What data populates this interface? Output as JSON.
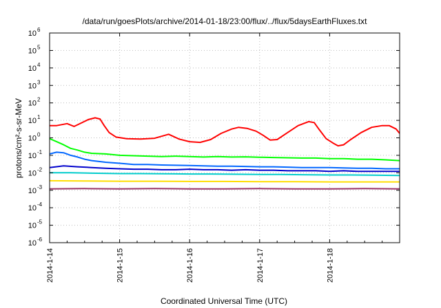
{
  "chart_data": {
    "type": "line",
    "title": "/data/run/goesPlots/archive/2014-01-18/23:00/flux/../flux/5daysEarthFluxes.txt",
    "xlabel": "Coordinated Universal Time (UTC)",
    "ylabel": "protons/cm²-s-sr-MeV",
    "x_range_days": [
      0,
      5
    ],
    "x_ticks": [
      {
        "day": 0,
        "label": "2014-1-14"
      },
      {
        "day": 1,
        "label": "2014-1-15"
      },
      {
        "day": 2,
        "label": "2014-1-16"
      },
      {
        "day": 3,
        "label": "2014-1-17"
      },
      {
        "day": 4,
        "label": "2014-1-18"
      }
    ],
    "y_scale": "log",
    "ylim": [
      1e-06,
      1000000.0
    ],
    "y_ticks": [
      {
        "exp": 6,
        "base": "10",
        "sup": "6"
      },
      {
        "exp": 5,
        "base": "10",
        "sup": "5"
      },
      {
        "exp": 4,
        "base": "10",
        "sup": "4"
      },
      {
        "exp": 3,
        "base": "10",
        "sup": "3"
      },
      {
        "exp": 2,
        "base": "10",
        "sup": "2"
      },
      {
        "exp": 1,
        "base": "10",
        "sup": "1"
      },
      {
        "exp": 0,
        "base": "10",
        "sup": "0"
      },
      {
        "exp": -1,
        "base": "10",
        "sup": "-1"
      },
      {
        "exp": -2,
        "base": "10",
        "sup": "-2"
      },
      {
        "exp": -3,
        "base": "10",
        "sup": "-3"
      },
      {
        "exp": -4,
        "base": "10",
        "sup": "-4"
      },
      {
        "exp": -5,
        "base": "10",
        "sup": "-5"
      },
      {
        "exp": -6,
        "base": "10",
        "sup": "-6"
      }
    ],
    "grid": true,
    "legend": "none",
    "series": [
      {
        "color": "#ff0000",
        "points": [
          [
            0,
            5.0
          ],
          [
            0.1,
            5.0
          ],
          [
            0.25,
            6.5
          ],
          [
            0.35,
            4.5
          ],
          [
            0.45,
            7.0
          ],
          [
            0.55,
            11.0
          ],
          [
            0.65,
            14.0
          ],
          [
            0.72,
            12.0
          ],
          [
            0.78,
            5.0
          ],
          [
            0.85,
            2.0
          ],
          [
            0.95,
            1.1
          ],
          [
            1.1,
            0.9
          ],
          [
            1.3,
            0.85
          ],
          [
            1.5,
            0.95
          ],
          [
            1.7,
            1.6
          ],
          [
            1.85,
            0.85
          ],
          [
            2.0,
            0.6
          ],
          [
            2.15,
            0.55
          ],
          [
            2.3,
            0.8
          ],
          [
            2.45,
            1.8
          ],
          [
            2.6,
            3.2
          ],
          [
            2.7,
            4.0
          ],
          [
            2.82,
            3.5
          ],
          [
            2.95,
            2.4
          ],
          [
            3.05,
            1.4
          ],
          [
            3.15,
            0.75
          ],
          [
            3.25,
            0.8
          ],
          [
            3.4,
            2.0
          ],
          [
            3.55,
            5.0
          ],
          [
            3.7,
            8.5
          ],
          [
            3.78,
            7.5
          ],
          [
            3.85,
            3.0
          ],
          [
            3.95,
            0.9
          ],
          [
            4.05,
            0.5
          ],
          [
            4.12,
            0.35
          ],
          [
            4.2,
            0.4
          ],
          [
            4.3,
            0.8
          ],
          [
            4.45,
            2.0
          ],
          [
            4.6,
            4.0
          ],
          [
            4.75,
            5.0
          ],
          [
            4.85,
            5.0
          ],
          [
            4.95,
            3.2
          ],
          [
            5.0,
            1.8
          ]
        ]
      },
      {
        "color": "#00ff00",
        "points": [
          [
            0,
            0.9
          ],
          [
            0.1,
            0.6
          ],
          [
            0.2,
            0.4
          ],
          [
            0.3,
            0.25
          ],
          [
            0.4,
            0.2
          ],
          [
            0.5,
            0.15
          ],
          [
            0.6,
            0.13
          ],
          [
            0.8,
            0.12
          ],
          [
            1.0,
            0.1
          ],
          [
            1.2,
            0.095
          ],
          [
            1.4,
            0.09
          ],
          [
            1.6,
            0.085
          ],
          [
            1.8,
            0.09
          ],
          [
            2.0,
            0.085
          ],
          [
            2.2,
            0.08
          ],
          [
            2.4,
            0.085
          ],
          [
            2.6,
            0.08
          ],
          [
            2.8,
            0.082
          ],
          [
            3.0,
            0.078
          ],
          [
            3.2,
            0.075
          ],
          [
            3.4,
            0.072
          ],
          [
            3.6,
            0.07
          ],
          [
            3.8,
            0.07
          ],
          [
            4.0,
            0.065
          ],
          [
            4.2,
            0.065
          ],
          [
            4.4,
            0.06
          ],
          [
            4.6,
            0.06
          ],
          [
            4.8,
            0.055
          ],
          [
            5.0,
            0.05
          ]
        ]
      },
      {
        "color": "#0066ff",
        "points": [
          [
            0,
            0.12
          ],
          [
            0.1,
            0.15
          ],
          [
            0.2,
            0.14
          ],
          [
            0.3,
            0.1
          ],
          [
            0.4,
            0.08
          ],
          [
            0.5,
            0.06
          ],
          [
            0.6,
            0.05
          ],
          [
            0.8,
            0.04
          ],
          [
            1.0,
            0.035
          ],
          [
            1.2,
            0.03
          ],
          [
            1.4,
            0.03
          ],
          [
            1.6,
            0.028
          ],
          [
            1.8,
            0.027
          ],
          [
            2.0,
            0.026
          ],
          [
            2.2,
            0.025
          ],
          [
            2.4,
            0.024
          ],
          [
            2.6,
            0.024
          ],
          [
            2.8,
            0.023
          ],
          [
            3.0,
            0.022
          ],
          [
            3.2,
            0.022
          ],
          [
            3.4,
            0.021
          ],
          [
            3.6,
            0.02
          ],
          [
            3.8,
            0.02
          ],
          [
            4.0,
            0.02
          ],
          [
            4.2,
            0.019
          ],
          [
            4.4,
            0.018
          ],
          [
            4.6,
            0.018
          ],
          [
            4.8,
            0.017
          ],
          [
            5.0,
            0.017
          ]
        ]
      },
      {
        "color": "#0000cc",
        "points": [
          [
            0,
            0.02
          ],
          [
            0.2,
            0.025
          ],
          [
            0.4,
            0.022
          ],
          [
            0.6,
            0.02
          ],
          [
            0.8,
            0.018
          ],
          [
            1.0,
            0.017
          ],
          [
            1.2,
            0.016
          ],
          [
            1.4,
            0.016
          ],
          [
            1.6,
            0.015
          ],
          [
            1.8,
            0.015
          ],
          [
            2.0,
            0.016
          ],
          [
            2.2,
            0.015
          ],
          [
            2.4,
            0.015
          ],
          [
            2.6,
            0.014
          ],
          [
            2.8,
            0.015
          ],
          [
            3.0,
            0.014
          ],
          [
            3.2,
            0.014
          ],
          [
            3.4,
            0.013
          ],
          [
            3.6,
            0.013
          ],
          [
            3.8,
            0.013
          ],
          [
            4.0,
            0.012
          ],
          [
            4.2,
            0.013
          ],
          [
            4.4,
            0.012
          ],
          [
            4.6,
            0.012
          ],
          [
            4.8,
            0.012
          ],
          [
            5.0,
            0.012
          ]
        ]
      },
      {
        "color": "#00cccc",
        "points": [
          [
            0,
            0.01
          ],
          [
            0.3,
            0.01
          ],
          [
            0.6,
            0.0095
          ],
          [
            1.0,
            0.009
          ],
          [
            1.3,
            0.009
          ],
          [
            1.6,
            0.0088
          ],
          [
            2.0,
            0.0085
          ],
          [
            2.3,
            0.0085
          ],
          [
            2.6,
            0.0083
          ],
          [
            3.0,
            0.008
          ],
          [
            3.3,
            0.008
          ],
          [
            3.6,
            0.0078
          ],
          [
            4.0,
            0.0075
          ],
          [
            4.3,
            0.0075
          ],
          [
            4.6,
            0.0073
          ],
          [
            5.0,
            0.007
          ]
        ]
      },
      {
        "color": "#ffdd00",
        "points": [
          [
            0,
            0.0035
          ],
          [
            0.5,
            0.0034
          ],
          [
            1.0,
            0.0033
          ],
          [
            1.5,
            0.0033
          ],
          [
            2.0,
            0.0032
          ],
          [
            2.5,
            0.0032
          ],
          [
            3.0,
            0.0031
          ],
          [
            3.5,
            0.0031
          ],
          [
            4.0,
            0.003
          ],
          [
            4.5,
            0.003
          ],
          [
            5.0,
            0.003
          ]
        ]
      },
      {
        "color": "#993366",
        "points": [
          [
            0,
            0.0012
          ],
          [
            0.5,
            0.00125
          ],
          [
            1.0,
            0.0012
          ],
          [
            1.5,
            0.00125
          ],
          [
            2.0,
            0.0012
          ],
          [
            2.5,
            0.0012
          ],
          [
            3.0,
            0.00125
          ],
          [
            3.5,
            0.0012
          ],
          [
            4.0,
            0.0012
          ],
          [
            4.5,
            0.00125
          ],
          [
            5.0,
            0.0012
          ]
        ]
      }
    ]
  }
}
